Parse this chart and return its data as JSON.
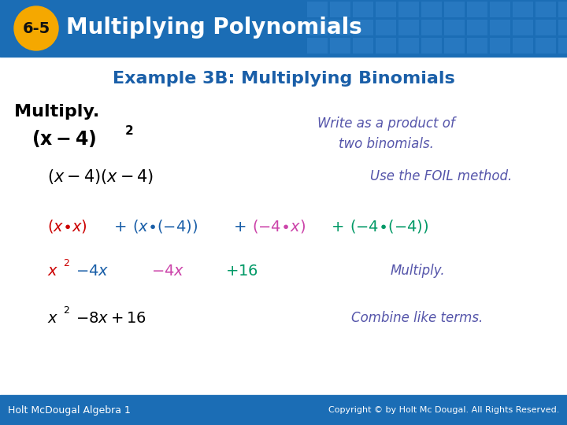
{
  "header_bg": "#1b6db5",
  "header_text": "Multiplying Polynomials",
  "header_badge_bg": "#f5a800",
  "header_badge_text": "6-5",
  "header_tile_color": "#3080c8",
  "title": "Example 3B: Multiplying Binomials",
  "title_color": "#1a5fa8",
  "body_bg": "#ffffff",
  "footer_bg": "#1b6db5",
  "footer_left": "Holt McDougal Algebra 1",
  "footer_right": "Copyright © by Holt Mc Dougal. All Rights Reserved.",
  "footer_text_color": "#ffffff",
  "note_color": "#5555aa",
  "red": "#cc0000",
  "blue": "#1a5fa8",
  "magenta": "#cc44aa",
  "teal": "#009966"
}
